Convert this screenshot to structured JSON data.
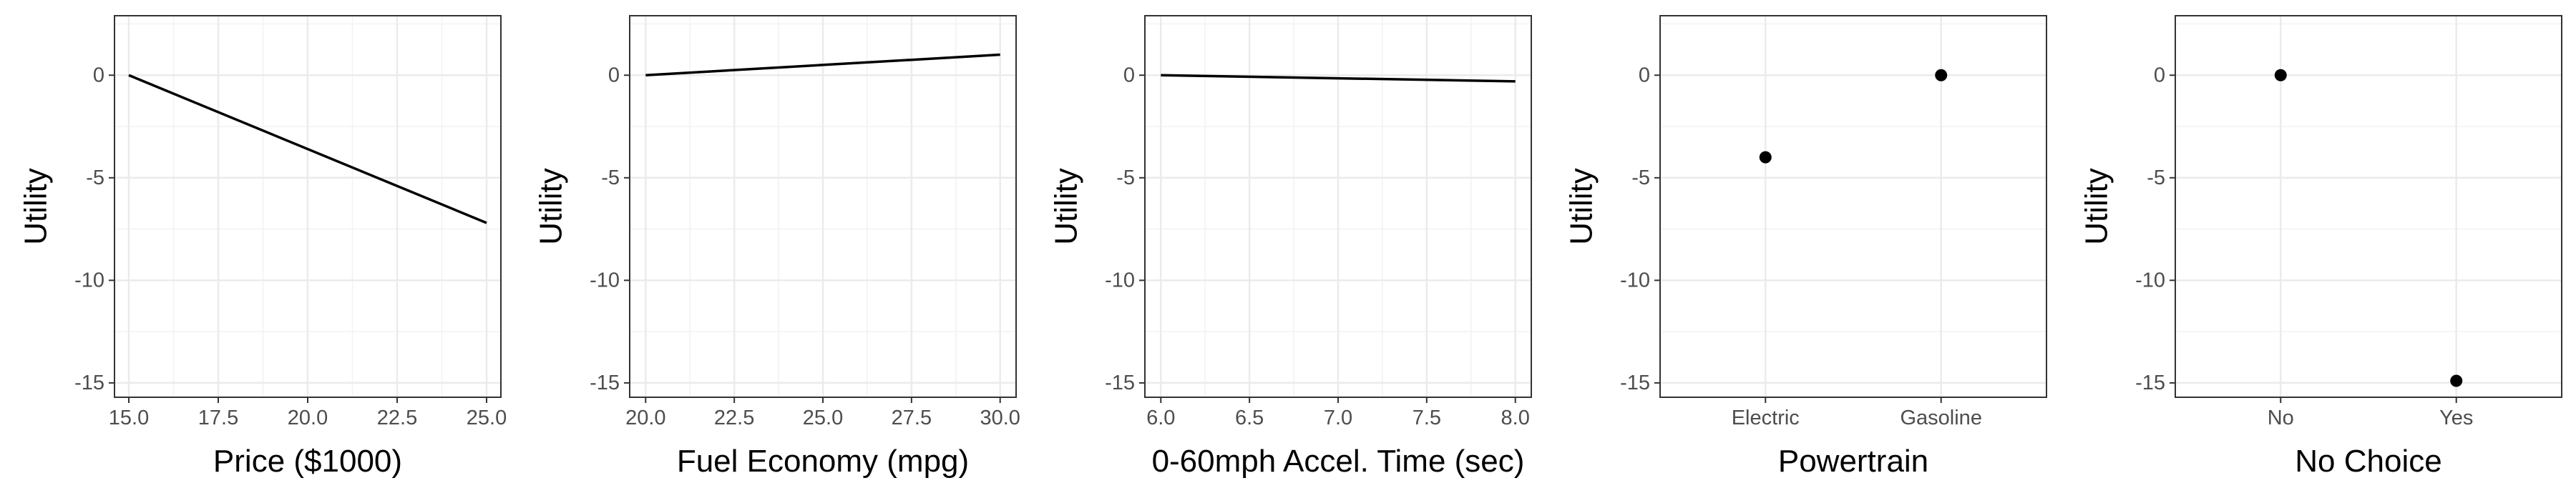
{
  "chart_data": [
    {
      "type": "line",
      "xlabel": "Price ($1000)",
      "ylabel": "Utility",
      "xlim": [
        14.6,
        25.4
      ],
      "ylim": [
        -15.7,
        2.9
      ],
      "xticks": [
        "15.0",
        "17.5",
        "20.0",
        "22.5",
        "25.0"
      ],
      "yticks": [
        "0",
        "-5",
        "-10",
        "-15"
      ],
      "x": [
        15,
        25
      ],
      "y": [
        0,
        -7.2
      ]
    },
    {
      "type": "line",
      "xlabel": "Fuel Economy (mpg)",
      "ylabel": "Utility",
      "xlim": [
        19.55,
        30.45
      ],
      "ylim": [
        -15.7,
        2.9
      ],
      "xticks": [
        "20.0",
        "22.5",
        "25.0",
        "27.5",
        "30.0"
      ],
      "yticks": [
        "0",
        "-5",
        "-10",
        "-15"
      ],
      "x": [
        20,
        30
      ],
      "y": [
        0,
        1.0
      ]
    },
    {
      "type": "line",
      "xlabel": "0-60mph Accel. Time (sec)",
      "ylabel": "Utility",
      "xlim": [
        5.91,
        8.09
      ],
      "ylim": [
        -15.7,
        2.9
      ],
      "xticks": [
        "6.0",
        "6.5",
        "7.0",
        "7.5",
        "8.0"
      ],
      "yticks": [
        "0",
        "-5",
        "-10",
        "-15"
      ],
      "x": [
        6,
        8
      ],
      "y": [
        0,
        -0.3
      ]
    },
    {
      "type": "scatter",
      "xlabel": "Powertrain",
      "ylabel": "Utility",
      "ylim": [
        -15.7,
        2.9
      ],
      "categories": [
        "Electric",
        "Gasoline"
      ],
      "yticks": [
        "0",
        "-5",
        "-10",
        "-15"
      ],
      "values": [
        -4.0,
        0
      ]
    },
    {
      "type": "scatter",
      "xlabel": "No Choice",
      "ylabel": "Utility",
      "ylim": [
        -15.7,
        2.9
      ],
      "categories": [
        "No",
        "Yes"
      ],
      "yticks": [
        "0",
        "-5",
        "-10",
        "-15"
      ],
      "values": [
        0,
        -14.9
      ]
    }
  ]
}
